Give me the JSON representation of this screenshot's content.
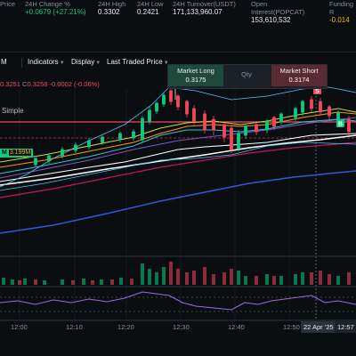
{
  "header": {
    "price_label": "Price",
    "change_label": "24H Change %",
    "change_value": "+0.0679 (+27.21%)",
    "high_label": "24H High",
    "high_value": "0.3302",
    "low_label": "24H Low",
    "low_value": "0.2421",
    "turnover_label": "24H Turnover(USDT)",
    "turnover_value": "171,133,960.07",
    "oi_label": "Open",
    "oi_label2": "Interest(POPCAT)",
    "oi_value": "153,610,532",
    "funding_label": "Funding R",
    "funding_value": "-0.014"
  },
  "toolbar": {
    "interval": "M",
    "indicators": "Indicators",
    "display": "Display",
    "last_traded": "Last Traded Price"
  },
  "ohlc": {
    "c_label": "C",
    "low_value": "0.3251",
    "close_value": "0.3258",
    "change_value": "-0.0002 (-0.06%)"
  },
  "chart_mode": "Simple",
  "volume_tag": {
    "prefix": "M",
    "value": "3.199M"
  },
  "trade_box": {
    "long_label": "Market Long",
    "long_price": "0.3175",
    "qty_placeholder": "Qty",
    "short_label": "Market Short",
    "short_price": "0.3174"
  },
  "markers": {
    "s": "S",
    "b": "B"
  },
  "xaxis": {
    "t1": "12:00",
    "t2": "12:10",
    "t3": "12:20",
    "t4": "12:30",
    "t5": "12:40",
    "t6": "12:50",
    "date_tag": "22 Apr '25",
    "time_tag": "12:57"
  },
  "colors": {
    "up": "#0ecb81",
    "down": "#f6465d",
    "accent": "#f0b90b"
  }
}
